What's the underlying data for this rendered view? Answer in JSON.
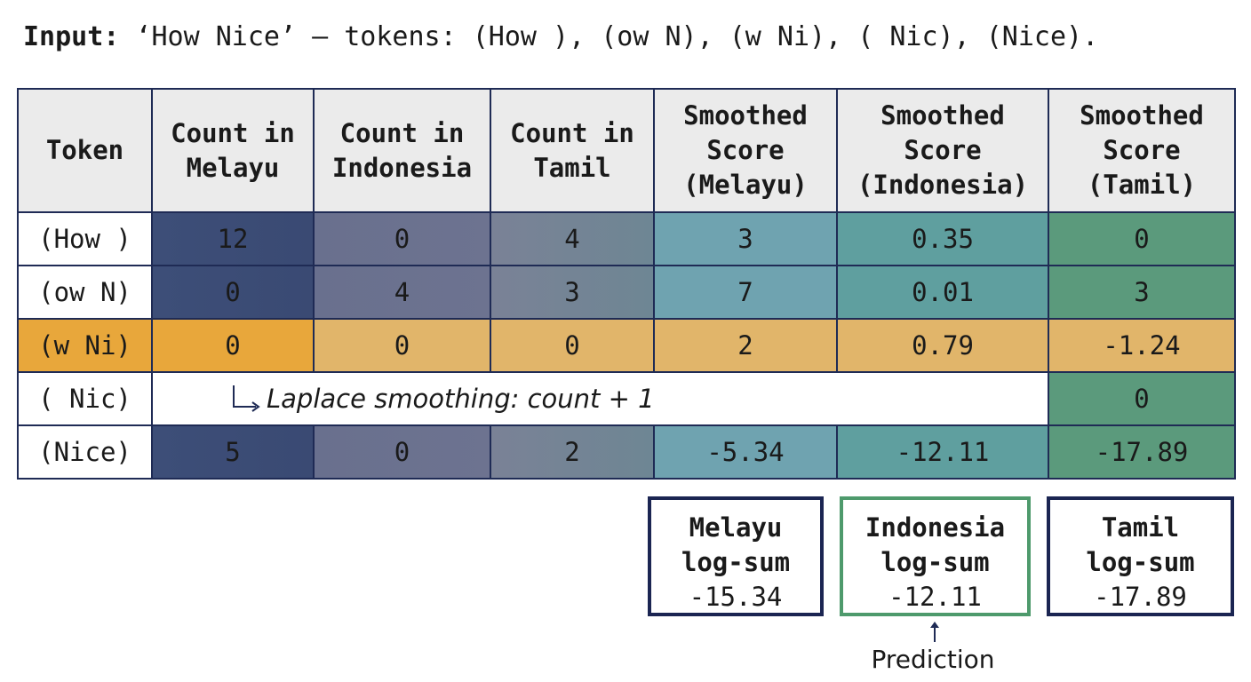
{
  "input": {
    "label": "Input:",
    "text": "‘How Nice’ — tokens: (How ), (ow N), (w Ni), ( Nic), (Nice)."
  },
  "table": {
    "headers": [
      [
        "Token"
      ],
      [
        "Count in",
        "Melayu"
      ],
      [
        "Count in",
        "Indonesia"
      ],
      [
        "Count in",
        "Tamil"
      ],
      [
        "Smoothed",
        "Score",
        "(Melayu)"
      ],
      [
        "Smoothed",
        "Score",
        "(Indonesia)"
      ],
      [
        "Smoothed",
        "Score",
        "(Tamil)"
      ]
    ],
    "rows": [
      {
        "token": "(How )",
        "count_melayu": "12",
        "count_indonesia": "0",
        "count_tamil": "4",
        "score_melayu": "3",
        "score_indonesia": "0.35",
        "score_tamil": "0"
      },
      {
        "token": "(ow N)",
        "count_melayu": "0",
        "count_indonesia": "4",
        "count_tamil": "3",
        "score_melayu": "7",
        "score_indonesia": "0.01",
        "score_tamil": "3"
      },
      {
        "token": "(w Ni)",
        "count_melayu": "0",
        "count_indonesia": "0",
        "count_tamil": "0",
        "score_melayu": "2",
        "score_indonesia": "0.79",
        "score_tamil": "-1.24"
      },
      {
        "token": "( Nic)",
        "note": "Laplace smoothing: count + 1",
        "score_tamil": "0"
      },
      {
        "token": "(Nice)",
        "count_melayu": "5",
        "count_indonesia": "0",
        "count_tamil": "2",
        "score_melayu": "-5.34",
        "score_indonesia": "-12.11",
        "score_tamil": "-17.89"
      }
    ]
  },
  "sums": [
    {
      "lang": "Melayu",
      "label": "log-sum",
      "value": "-15.34"
    },
    {
      "lang": "Indonesia",
      "label": "log-sum",
      "value": "-12.11"
    },
    {
      "lang": "Tamil",
      "label": "log-sum",
      "value": "-17.89"
    }
  ],
  "prediction_label": "Prediction",
  "colors": {
    "border": "#1f2b55",
    "highlight_row": "#e1b56a",
    "prediction_border": "#4e9a6c"
  }
}
